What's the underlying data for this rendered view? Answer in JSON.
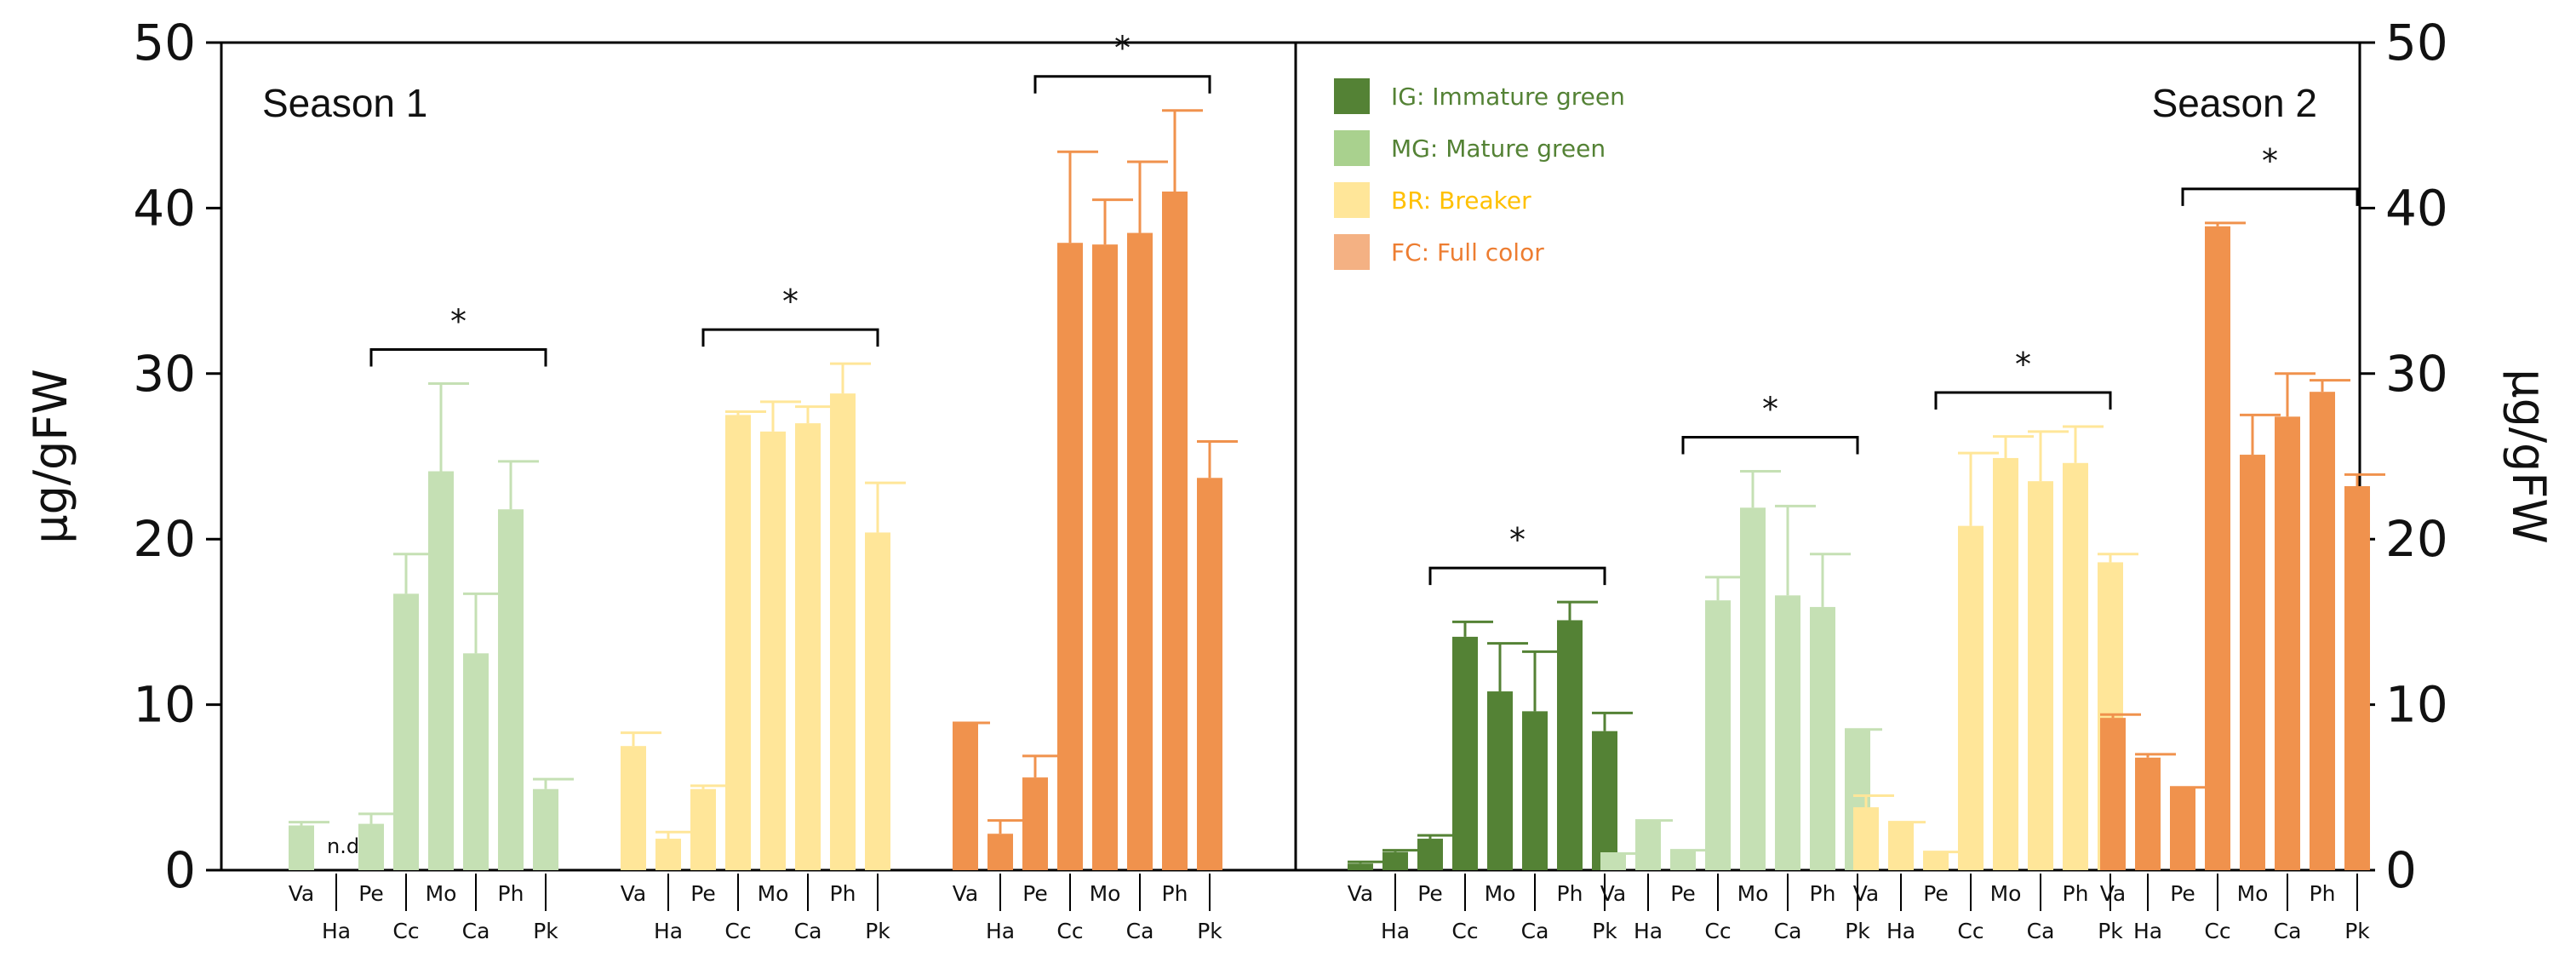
{
  "chart_data": {
    "type": "bar",
    "ylabel_left": "μg/gFW",
    "ylabel_right": "μg/gFW",
    "ylim": [
      0,
      50
    ],
    "yticks": [
      "0",
      "10",
      "20",
      "30",
      "40",
      "50"
    ],
    "categories": [
      "Va",
      "Ha",
      "Pe",
      "Cc",
      "Mo",
      "Ca",
      "Ph",
      "Pk"
    ],
    "legend": [
      {
        "key": "IG",
        "label": "IG: Immature green",
        "color": "#548235",
        "text_color": "#548235"
      },
      {
        "key": "MG",
        "label": "MG: Mature green",
        "color": "#A9D18E",
        "text_color": "#548235"
      },
      {
        "key": "BR",
        "label": "BR: Breaker",
        "color": "#FFE699",
        "text_color": "#FFC000"
      },
      {
        "key": "FC",
        "label": "FC: Full color",
        "color": "#F4B183",
        "text_color": "#ED7D31"
      }
    ],
    "panels": [
      {
        "title": "Season 1",
        "groups": [
          {
            "stage": "MG",
            "color": "#C5E0B4",
            "values": [
              2.7,
              null,
              2.8,
              16.7,
              24.1,
              13.1,
              21.8,
              4.9
            ],
            "errors": [
              0.2,
              null,
              0.6,
              2.4,
              5.3,
              3.6,
              2.9,
              0.6
            ],
            "annotations": {
              "1": "n.d."
            },
            "bracket": [
              2,
              7
            ],
            "star": "*"
          },
          {
            "stage": "BR",
            "color": "#FFE699",
            "values": [
              7.5,
              1.9,
              4.9,
              27.5,
              26.5,
              27.0,
              28.8,
              20.4
            ],
            "errors": [
              0.8,
              0.4,
              0.2,
              0.2,
              1.8,
              1.0,
              1.8,
              3.0
            ],
            "bracket": [
              2,
              7
            ],
            "star": "*"
          },
          {
            "stage": "FC",
            "color": "#F0924D",
            "values": [
              8.9,
              2.2,
              5.6,
              37.9,
              37.8,
              38.5,
              41.0,
              23.7
            ],
            "errors": [
              0.0,
              0.8,
              1.3,
              5.5,
              2.7,
              4.3,
              4.9,
              2.2
            ],
            "bracket": [
              2,
              7
            ],
            "star": "*"
          }
        ]
      },
      {
        "title": "Season 2",
        "groups": [
          {
            "stage": "IG",
            "color": "#548235",
            "values": [
              0.4,
              1.1,
              1.9,
              14.1,
              10.8,
              9.6,
              15.1,
              8.4
            ],
            "errors": [
              0.1,
              0.1,
              0.2,
              0.9,
              2.9,
              3.6,
              1.1,
              1.1
            ],
            "bracket": [
              2,
              7
            ],
            "star": "*"
          },
          {
            "stage": "MG",
            "color": "#C5E0B4",
            "values": [
              1.0,
              3.0,
              1.2,
              16.3,
              21.9,
              16.6,
              15.9,
              8.5
            ],
            "errors": [
              0.0,
              0.0,
              0.0,
              1.4,
              2.2,
              5.4,
              3.2,
              0.0
            ],
            "bracket": [
              2,
              7
            ],
            "star": "*"
          },
          {
            "stage": "BR",
            "color": "#FFE699",
            "values": [
              3.8,
              2.9,
              1.1,
              20.8,
              24.9,
              23.5,
              24.6,
              18.6
            ],
            "errors": [
              0.7,
              0.0,
              0.0,
              4.4,
              1.3,
              3.0,
              2.2,
              0.5
            ],
            "bracket": [
              2,
              7
            ],
            "star": "*"
          },
          {
            "stage": "FC",
            "color": "#F0924D",
            "values": [
              9.2,
              6.8,
              5.0,
              38.9,
              25.1,
              27.4,
              28.9,
              23.2
            ],
            "errors": [
              0.2,
              0.2,
              0.0,
              0.2,
              2.4,
              2.6,
              0.7,
              0.7
            ],
            "bracket": [
              2,
              7
            ],
            "star": "*"
          }
        ]
      }
    ]
  }
}
